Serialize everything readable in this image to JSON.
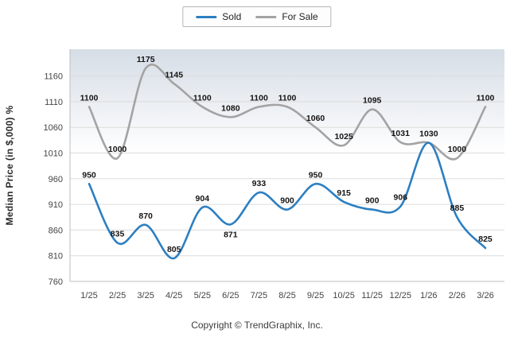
{
  "legend": {
    "items": [
      {
        "label": "Sold",
        "color": "#2d7fc1"
      },
      {
        "label": "For Sale",
        "color": "#a3a3a3"
      }
    ]
  },
  "chart_data": {
    "type": "line",
    "title": "",
    "categories": [
      "1/25",
      "2/25",
      "3/25",
      "4/25",
      "5/25",
      "6/25",
      "7/25",
      "8/25",
      "9/25",
      "10/25",
      "11/25",
      "12/25",
      "1/26",
      "2/26",
      "3/26"
    ],
    "series": [
      {
        "name": "For Sale",
        "color": "#a3a3a3",
        "values": [
          1100,
          1000,
          1175,
          1145,
          1100,
          1080,
          1100,
          1100,
          1060,
          1025,
          1095,
          1031,
          1030,
          1000,
          1100
        ],
        "labels": [
          "1100",
          "1000",
          "1175",
          "1145",
          "1100",
          "1080",
          "1100",
          "1100",
          "1060",
          "1025",
          "1095",
          "1031",
          "",
          "1000",
          "1100"
        ],
        "label_dy": [
          -8,
          -8,
          -8,
          -8,
          -8,
          -8,
          -8,
          -8,
          -8,
          -8,
          -8,
          -8,
          -8,
          -8,
          -8
        ]
      },
      {
        "name": "Sold",
        "color": "#2d7fc1",
        "values": [
          950,
          835,
          870,
          805,
          904,
          871,
          933,
          900,
          950,
          915,
          900,
          906,
          1030,
          885,
          825
        ],
        "labels": [
          "950",
          "835",
          "870",
          "805",
          "904",
          "871",
          "933",
          "900",
          "950",
          "915",
          "900",
          "906",
          "1030",
          "885",
          "825"
        ],
        "label_dy": [
          -8,
          -8,
          -8,
          -8,
          -8,
          16,
          -8,
          -8,
          -8,
          -8,
          -8,
          -8,
          -8,
          -8,
          -8
        ]
      }
    ],
    "xlabel": "",
    "ylabel": "Median Price (in $,000) %",
    "ylim": [
      760,
      1212
    ],
    "yticks": [
      760,
      810,
      860,
      910,
      960,
      1010,
      1060,
      1110,
      1160
    ],
    "grid": true,
    "legend_position": "top"
  },
  "footer": {
    "copyright": "Copyright © TrendGraphix, Inc."
  }
}
